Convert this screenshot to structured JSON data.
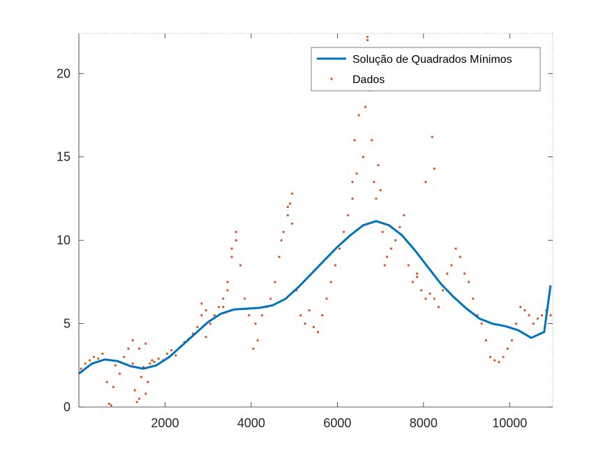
{
  "chart_data": {
    "type": "scatter",
    "xlim": [
      0,
      11000
    ],
    "ylim": [
      0,
      22.4
    ],
    "xticks": [
      "2000",
      "4000",
      "6000",
      "8000",
      "10000"
    ],
    "yticks": [
      "0",
      "5",
      "10",
      "15",
      "20"
    ],
    "xtick_values": [
      2000,
      4000,
      6000,
      8000,
      10000
    ],
    "ytick_values": [
      0,
      5,
      10,
      15,
      20
    ],
    "grid": false,
    "legend_position": "top-right",
    "colors": {
      "fit": "#0072BD",
      "data": "#D95319",
      "axis": "#262626"
    },
    "series": [
      {
        "name": "Solução de Quadrados Mínimos",
        "kind": "line",
        "x": [
          0,
          300,
          600,
          900,
          1200,
          1500,
          1800,
          2100,
          2400,
          2700,
          3000,
          3300,
          3600,
          3900,
          4200,
          4500,
          4800,
          5100,
          5400,
          5700,
          6000,
          6300,
          6600,
          6900,
          7200,
          7500,
          7800,
          8100,
          8400,
          8700,
          9000,
          9300,
          9600,
          9900,
          10200,
          10500,
          10800,
          10950
        ],
        "y": [
          2.0,
          2.6,
          2.85,
          2.75,
          2.45,
          2.3,
          2.5,
          3.0,
          3.7,
          4.4,
          5.1,
          5.6,
          5.85,
          5.9,
          5.95,
          6.1,
          6.5,
          7.2,
          8.0,
          8.8,
          9.6,
          10.3,
          10.9,
          11.15,
          10.9,
          10.3,
          9.4,
          8.4,
          7.4,
          6.6,
          5.9,
          5.3,
          5.0,
          4.85,
          4.6,
          4.15,
          4.5,
          7.3
        ]
      },
      {
        "name": "Dados",
        "kind": "scatter",
        "x": [
          50,
          150,
          250,
          350,
          450,
          550,
          650,
          700,
          750,
          800,
          850,
          950,
          1050,
          1150,
          1250,
          1300,
          1350,
          1400,
          1450,
          1500,
          1550,
          1600,
          1650,
          1700,
          1750,
          1850,
          1950,
          2050,
          2150,
          2250,
          2350,
          2450,
          2550,
          2650,
          2750,
          2850,
          2950,
          3050,
          3150,
          3250,
          3350,
          3450,
          3550,
          3650,
          3750,
          3850,
          3950,
          4050,
          4100,
          4150,
          4250,
          4350,
          4450,
          4550,
          4650,
          4700,
          4750,
          4850,
          4900,
          4950,
          5050,
          5150,
          5250,
          5350,
          5450,
          5550,
          5650,
          5750,
          5850,
          5950,
          6050,
          6150,
          6250,
          6350,
          6400,
          6450,
          6500,
          6550,
          6600,
          6650,
          6700,
          6750,
          6800,
          6850,
          6900,
          6950,
          7000,
          7050,
          7100,
          7150,
          7250,
          7350,
          7450,
          7550,
          7650,
          7750,
          7850,
          7950,
          8050,
          8150,
          8250,
          8350,
          8450,
          8550,
          8650,
          8750,
          8850,
          8950,
          9050,
          9150,
          9250,
          9350,
          9450,
          9550,
          9650,
          9750,
          9850,
          9950,
          10050,
          10150,
          10250,
          10350,
          10450,
          10550,
          10650,
          10750,
          10850,
          10950,
          8200,
          8250,
          8050,
          7850,
          6650,
          6700,
          6350,
          6600,
          3350,
          3450,
          3550,
          3650,
          4850,
          4950,
          2850,
          2950,
          1250,
          1400,
          1550
        ],
        "y": [
          2.3,
          2.6,
          2.8,
          3.0,
          2.9,
          3.2,
          1.5,
          0.2,
          0.1,
          1.2,
          2.5,
          2.0,
          3.0,
          3.5,
          2.6,
          1.0,
          0.3,
          0.5,
          1.8,
          2.4,
          0.8,
          1.5,
          2.6,
          2.8,
          2.7,
          2.9,
          2.8,
          3.2,
          3.4,
          3.1,
          3.6,
          3.9,
          4.1,
          4.4,
          4.8,
          5.5,
          4.2,
          5.0,
          5.5,
          6.0,
          6.5,
          7.5,
          9.5,
          10.0,
          8.5,
          6.5,
          5.5,
          3.5,
          5.0,
          4.0,
          5.5,
          6.0,
          6.5,
          7.5,
          9.0,
          10.0,
          10.5,
          12.0,
          12.2,
          11.0,
          7.0,
          5.5,
          5.0,
          5.8,
          4.8,
          4.5,
          5.5,
          6.5,
          7.5,
          8.5,
          9.5,
          10.5,
          11.5,
          13.5,
          16.0,
          14.0,
          17.5,
          19.5,
          21.0,
          18.0,
          22.0,
          19.0,
          16.0,
          13.5,
          12.5,
          14.5,
          13.0,
          10.5,
          8.5,
          9.0,
          9.5,
          10.0,
          10.8,
          11.5,
          8.5,
          7.5,
          7.8,
          7.0,
          6.5,
          6.8,
          6.5,
          6.0,
          7.0,
          8.0,
          8.5,
          9.5,
          9.0,
          8.0,
          7.5,
          6.5,
          5.5,
          5.0,
          4.0,
          3.0,
          2.8,
          2.7,
          3.0,
          3.5,
          4.0,
          5.0,
          6.0,
          5.8,
          5.5,
          5.0,
          5.3,
          5.5,
          5.8,
          5.5,
          16.2,
          14.3,
          13.5,
          8.0,
          20.5,
          22.2,
          12.5,
          15.0,
          6.0,
          7.0,
          9.0,
          10.5,
          11.5,
          12.8,
          6.2,
          5.8,
          4.0,
          3.5,
          3.8
        ]
      }
    ]
  }
}
